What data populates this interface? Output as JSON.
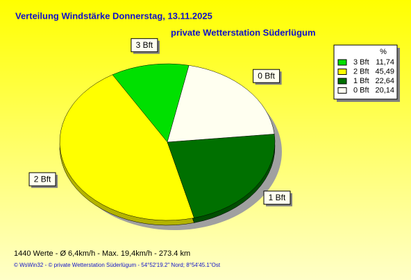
{
  "chart_data": {
    "type": "pie",
    "title": "Verteilung Windstärke  Donnerstag, 13.11.2025",
    "subtitle": "private Wetterstation Süderlügum",
    "categories": [
      "3 Bft",
      "2 Bft",
      "1 Bft",
      "0 Bft"
    ],
    "values": [
      11.74,
      45.49,
      22.64,
      20.14
    ],
    "value_labels": [
      "11,74",
      "45,49",
      "22,64",
      "20,14"
    ],
    "colors": [
      "#00e000",
      "#ffff00",
      "#007000",
      "#fffff0"
    ],
    "legend_title": "%",
    "footer": "1440 Werte   -   Ø 6,4km/h  -  Max. 19,4km/h   -   273.4 km",
    "credits": "© WsWin32  -  © private Wetterstation Süderlügum  -  54°52'19.2\" Nord; 8°54'45.1\"Ost"
  }
}
